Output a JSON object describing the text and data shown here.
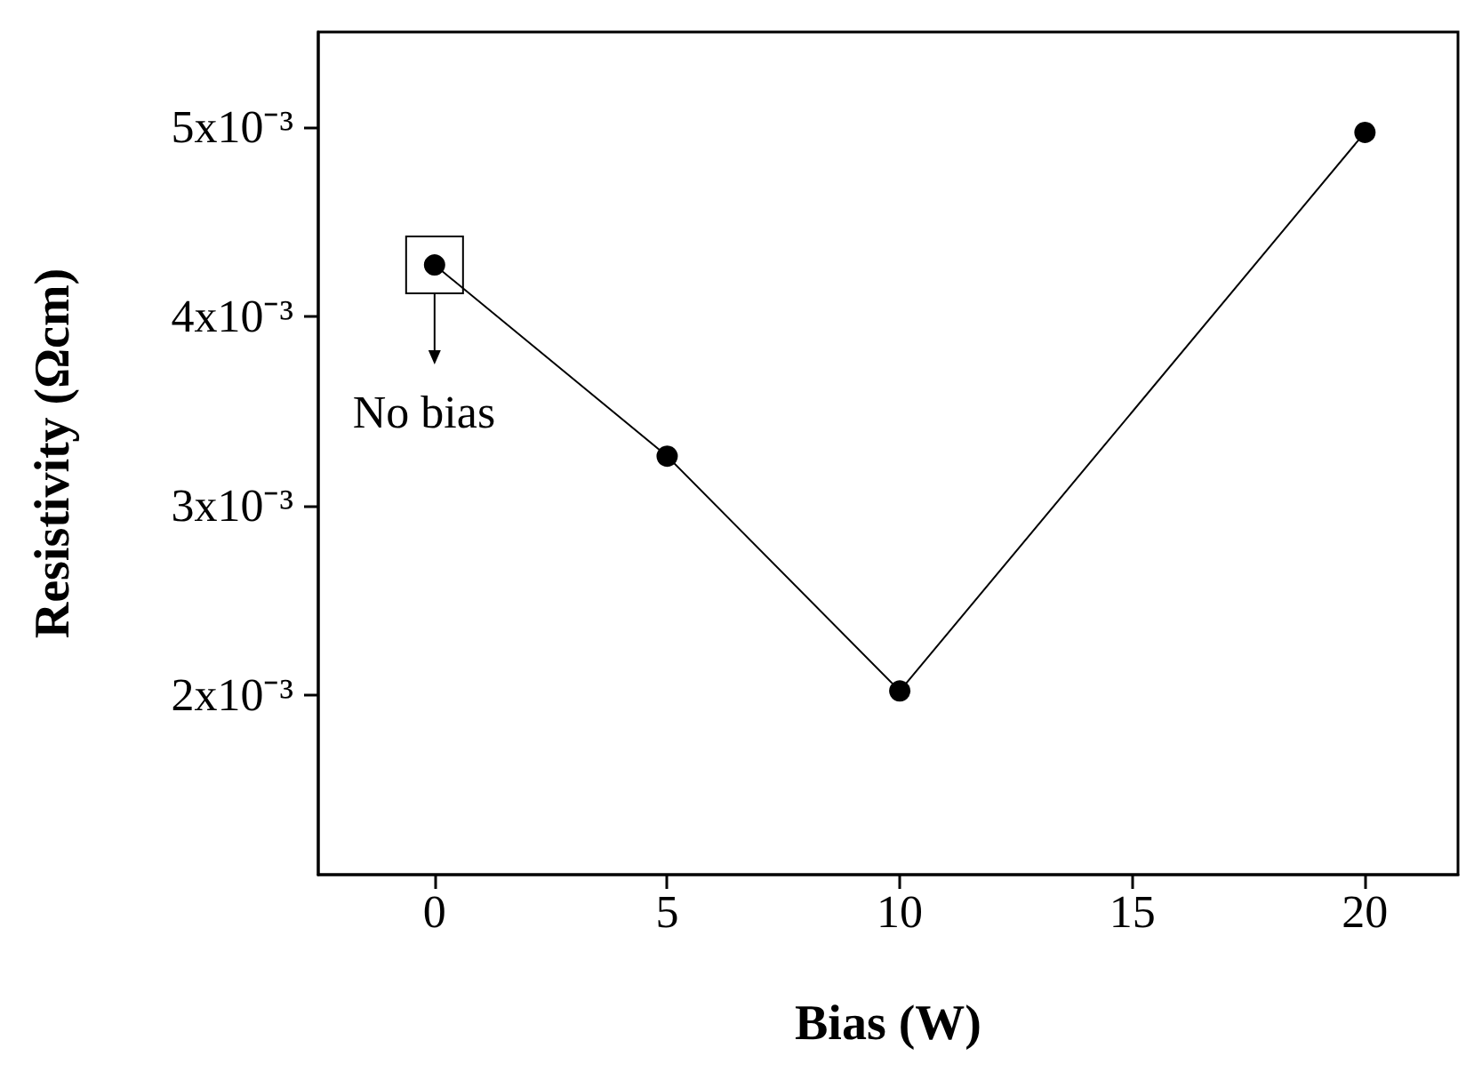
{
  "chart_data": {
    "type": "line",
    "xlabel": "Bias (W)",
    "ylabel": "Resistivity (Ωcm)",
    "x": [
      0,
      5,
      10,
      20
    ],
    "series": [
      {
        "color": "#000000",
        "values": [
          0.00427,
          0.00326,
          0.00202,
          0.00497
        ]
      }
    ],
    "xlim": [
      -2.5,
      22
    ],
    "xticks": [
      0,
      5,
      10,
      15,
      20
    ],
    "ylim": [
      0.00105,
      0.0055
    ],
    "yticks": [
      {
        "value": 0.002,
        "label": "2x10⁻³"
      },
      {
        "value": 0.003,
        "label": "3x10⁻³"
      },
      {
        "value": 0.004,
        "label": "4x10⁻³"
      },
      {
        "value": 0.005,
        "label": "5x10⁻³"
      }
    ],
    "annotations": [
      {
        "text": "No bias",
        "x": 0,
        "y": 0.00427
      }
    ],
    "marker": "circle",
    "line_style": "solid"
  }
}
